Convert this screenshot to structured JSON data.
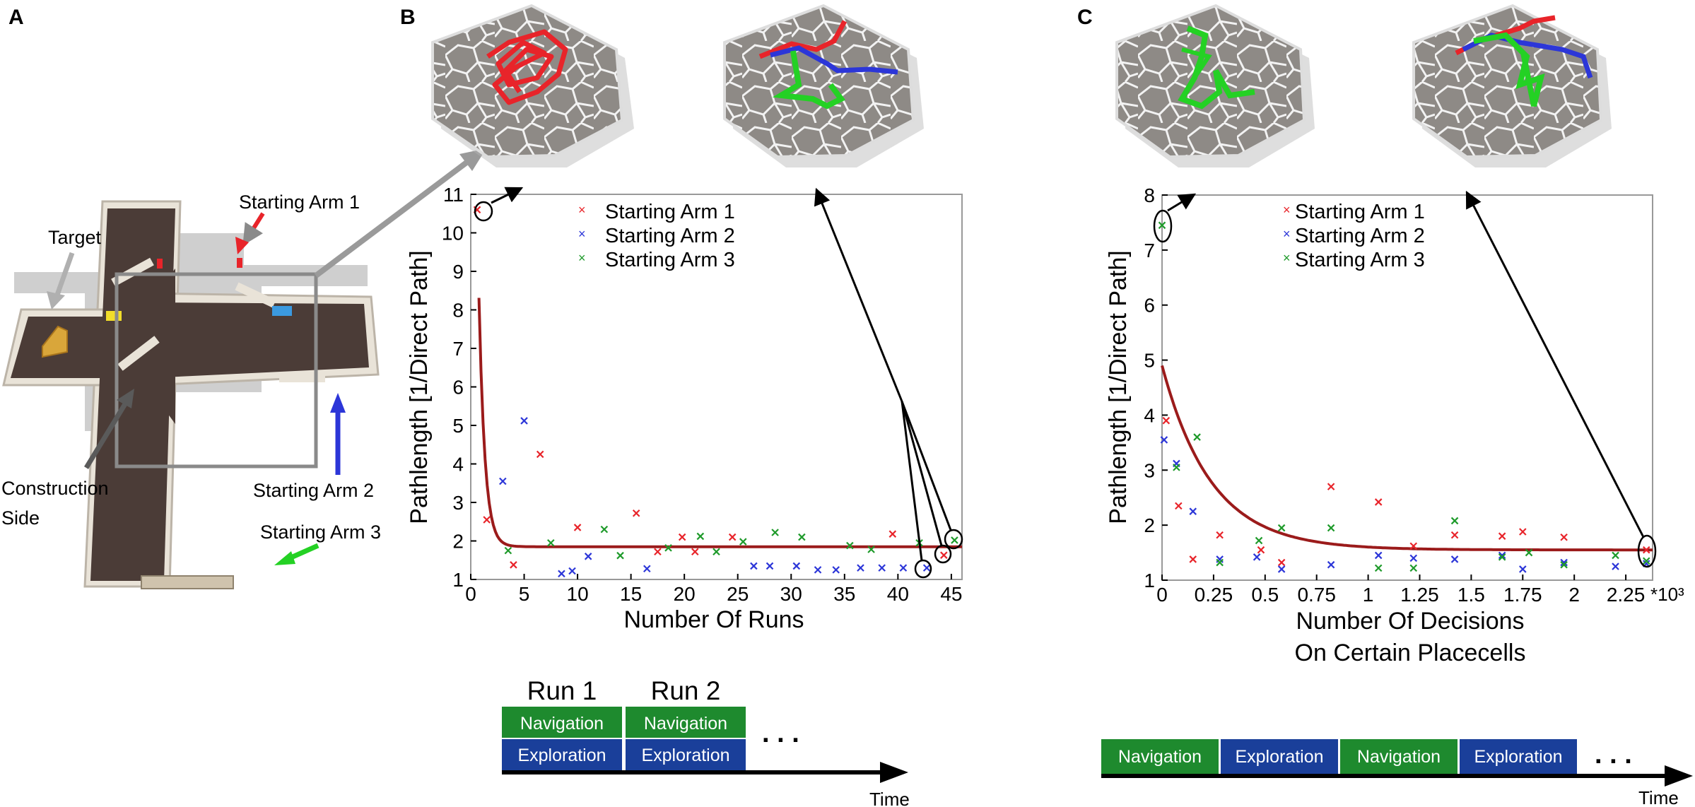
{
  "panels": {
    "a": {
      "letter": "A",
      "labels": {
        "target": "Target",
        "arm1": "Starting Arm 1",
        "arm2": "Starting Arm 2",
        "arm3": "Starting Arm 3",
        "construction_line1": "Construction",
        "construction_line2": "Side"
      }
    },
    "b": {
      "letter": "B"
    },
    "c": {
      "letter": "C"
    }
  },
  "colors": {
    "arm1": "#e8242a",
    "arm2": "#2c36d8",
    "arm3": "#1e9a2a",
    "fit": "#9b1b1b",
    "navigation": "#1e8a2e",
    "exploration": "#1a3f9a",
    "arena_floor": "#8e8a86",
    "maze_floor": "#4b3c37"
  },
  "timeline_b": {
    "run1": "Run 1",
    "run2": "Run 2",
    "navigation": "Navigation",
    "exploration": "Exploration",
    "ellipsis": ". . .",
    "time_label": "Time"
  },
  "timeline_c": {
    "navigation": "Navigation",
    "exploration": "Exploration",
    "ellipsis": ". . .",
    "time_label": "Time"
  },
  "chart_data": [
    {
      "type": "scatter",
      "title": "",
      "xlabel": "Number Of Runs",
      "ylabel": "Pathlength [1/Direct Path]",
      "xlim": [
        0,
        46
      ],
      "ylim": [
        1,
        11
      ],
      "xticks": [
        0,
        5,
        10,
        15,
        20,
        25,
        30,
        35,
        40,
        45
      ],
      "xtick_labels": [
        "0",
        "5",
        "10",
        "15",
        "20",
        "25",
        "30",
        "35",
        "40",
        "45"
      ],
      "yticks": [
        1,
        2,
        3,
        4,
        5,
        6,
        7,
        8,
        9,
        10,
        11
      ],
      "ytick_labels": [
        "1",
        "2",
        "3",
        "4",
        "5",
        "6",
        "7",
        "8",
        "9",
        "10",
        "11"
      ],
      "x_exponent_label": "",
      "legend_position": "top-center",
      "grid": false,
      "series": [
        {
          "name": "Starting Arm 1",
          "color": "#e8242a",
          "x": [
            0.6,
            1.5,
            4,
            6.5,
            10,
            15.5,
            17.5,
            19.8,
            21,
            24.5,
            39.5,
            44.3
          ],
          "y": [
            10.6,
            2.55,
            1.38,
            4.25,
            2.35,
            2.72,
            1.72,
            2.1,
            1.72,
            2.1,
            2.18,
            1.63
          ]
        },
        {
          "name": "Starting Arm 2",
          "color": "#2c36d8",
          "x": [
            3,
            5,
            8.5,
            9.5,
            11,
            16.5,
            26.5,
            28,
            30.5,
            32.5,
            34.2,
            36.5,
            38.5,
            40.5,
            42.7
          ],
          "y": [
            3.55,
            5.12,
            1.15,
            1.22,
            1.6,
            1.28,
            1.35,
            1.35,
            1.35,
            1.25,
            1.25,
            1.3,
            1.3,
            1.3,
            1.3
          ]
        },
        {
          "name": "Starting Arm 3",
          "color": "#1e9a2a",
          "x": [
            3.5,
            7.5,
            12.5,
            14,
            18.5,
            21.5,
            23,
            25.5,
            28.5,
            31,
            35.5,
            37.5,
            42,
            45.3
          ],
          "y": [
            1.75,
            1.95,
            2.3,
            1.62,
            1.82,
            2.12,
            1.72,
            1.98,
            2.22,
            2.1,
            1.88,
            1.78,
            1.95,
            2.02
          ]
        }
      ],
      "fit_curve": {
        "name": "",
        "color": "#9b1b1b"
      }
    },
    {
      "type": "scatter",
      "title": "",
      "xlabel": "Number Of Decisions",
      "xlabel_line2": "On Certain Placecells",
      "ylabel": "Pathlength [1/Direct Path]",
      "xlim": [
        0,
        2.38
      ],
      "ylim": [
        1,
        8
      ],
      "xticks": [
        0,
        0.25,
        0.5,
        0.75,
        1,
        1.25,
        1.5,
        1.75,
        2,
        2.25
      ],
      "xtick_labels": [
        "0",
        "0.25",
        "0.5",
        "0.75",
        "1",
        "1.25",
        "1.5",
        "1.75",
        "2",
        "2.25"
      ],
      "yticks": [
        1,
        2,
        3,
        4,
        5,
        6,
        7,
        8
      ],
      "ytick_labels": [
        "1",
        "2",
        "3",
        "4",
        "5",
        "6",
        "7",
        "8"
      ],
      "x_exponent_label": "*10³",
      "legend_position": "top-center",
      "grid": false,
      "series": [
        {
          "name": "Starting Arm 1",
          "color": "#e8242a",
          "x": [
            0.02,
            0.08,
            0.15,
            0.28,
            0.48,
            0.58,
            0.82,
            1.05,
            1.22,
            1.42,
            1.65,
            1.75,
            1.95,
            2.35
          ],
          "y": [
            3.9,
            2.35,
            1.38,
            1.82,
            1.55,
            1.32,
            2.7,
            2.42,
            1.62,
            1.82,
            1.8,
            1.88,
            1.78,
            1.55
          ]
        },
        {
          "name": "Starting Arm 2",
          "color": "#2c36d8",
          "x": [
            0.01,
            0.07,
            0.15,
            0.28,
            0.46,
            0.58,
            0.82,
            1.05,
            1.22,
            1.42,
            1.65,
            1.75,
            1.95,
            2.2,
            2.35
          ],
          "y": [
            3.55,
            3.12,
            2.25,
            1.38,
            1.42,
            1.2,
            1.28,
            1.45,
            1.4,
            1.38,
            1.45,
            1.2,
            1.32,
            1.25,
            1.3
          ]
        },
        {
          "name": "Starting Arm 3",
          "color": "#1e9a2a",
          "x": [
            0.0,
            0.07,
            0.17,
            0.28,
            0.47,
            0.58,
            0.82,
            1.05,
            1.22,
            1.42,
            1.65,
            1.78,
            1.95,
            2.2,
            2.35
          ],
          "y": [
            7.45,
            3.05,
            3.6,
            1.32,
            1.72,
            1.95,
            1.95,
            1.22,
            1.22,
            2.08,
            1.42,
            1.5,
            1.28,
            1.45,
            1.35
          ]
        }
      ],
      "fit_curve": {
        "name": "",
        "color": "#9b1b1b"
      }
    }
  ]
}
